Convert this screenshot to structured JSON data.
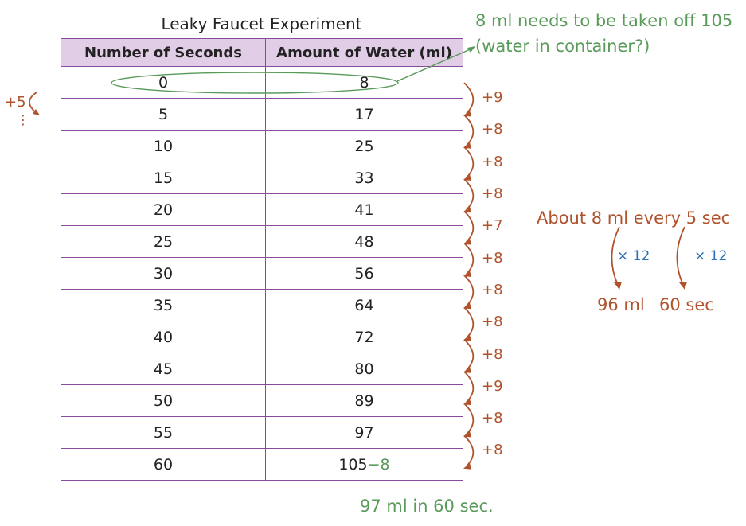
{
  "table": {
    "title": "Leaky Faucet Experiment",
    "headers": [
      "Number of Seconds",
      "Amount of Water (ml)"
    ],
    "rows": [
      [
        "0",
        "8"
      ],
      [
        "5",
        "17"
      ],
      [
        "10",
        "25"
      ],
      [
        "15",
        "33"
      ],
      [
        "20",
        "41"
      ],
      [
        "25",
        "48"
      ],
      [
        "30",
        "56"
      ],
      [
        "35",
        "64"
      ],
      [
        "40",
        "72"
      ],
      [
        "45",
        "80"
      ],
      [
        "50",
        "89"
      ],
      [
        "55",
        "97"
      ],
      [
        "60",
        "105"
      ]
    ],
    "last_cell_annotation": "−8"
  },
  "annotations": {
    "top_note": "8 ml needs to be taken off 105 (water in container?)",
    "left_step": "+5",
    "left_dots": "⋮",
    "differences": [
      "+9",
      "+8",
      "+8",
      "+8",
      "+7",
      "+8",
      "+8",
      "+8",
      "+8",
      "+9",
      "+8",
      "+8"
    ],
    "rate_note": "About 8 ml every 5 sec",
    "multiplier_left": "× 12",
    "multiplier_right": "× 12",
    "result_ml": "96 ml",
    "result_sec": "60 sec",
    "bottom_note": "97 ml in 60 sec."
  },
  "colors": {
    "green": "#5a9a5a",
    "brown": "#b0522c",
    "blue": "#2b6fb6",
    "header_bg": "#e2cde6",
    "border": "#8a4a9a"
  }
}
